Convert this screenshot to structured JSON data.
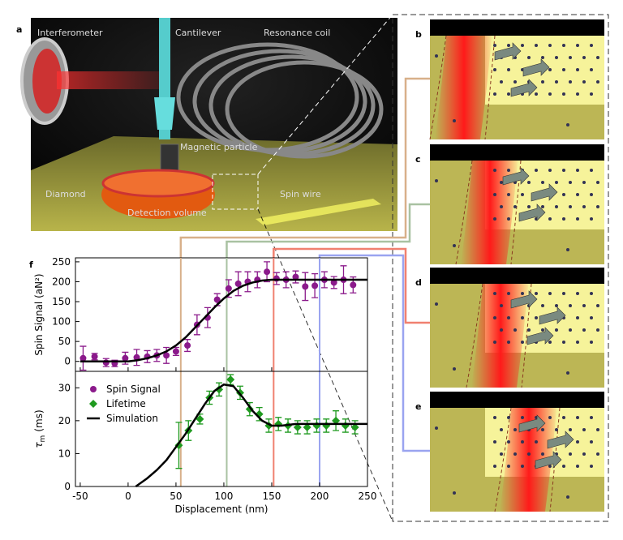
{
  "panel_labels": [
    "a",
    "b",
    "c",
    "d",
    "e",
    "f"
  ],
  "image_labels": [
    "Interferometer",
    "Cantilever",
    "Resonance coil",
    "Magnetic particle",
    "Diamond",
    "Spin wire",
    "Detection volume"
  ],
  "chart_data": [
    {
      "type": "scatter",
      "ylabel": "Spin Signal (aN²)",
      "xlim": [
        -55,
        250
      ],
      "xticks": [
        -50,
        0,
        50,
        100,
        150,
        200,
        250
      ],
      "ylim": [
        -25,
        260
      ],
      "yticks": [
        0,
        50,
        100,
        150,
        200,
        250
      ],
      "reference_lines": [
        {
          "x": 55,
          "color": "#d8b08a"
        },
        {
          "x": 103,
          "color": "#a9c2a2"
        },
        {
          "x": 152,
          "color": "#f08070"
        },
        {
          "x": 200,
          "color": "#9aa4f0"
        }
      ],
      "series": [
        {
          "name": "Spin Signal",
          "color": "#8b1a8b",
          "marker": "circle",
          "x": [
            -47,
            -35,
            -23,
            -14,
            -3,
            9,
            20,
            30,
            40,
            50,
            62,
            72,
            83,
            93,
            105,
            115,
            125,
            135,
            145,
            155,
            165,
            175,
            185,
            195,
            205,
            215,
            225,
            235
          ],
          "values": [
            8,
            12,
            -3,
            -5,
            8,
            10,
            12,
            15,
            15,
            25,
            40,
            92,
            110,
            155,
            183,
            195,
            200,
            205,
            225,
            208,
            205,
            212,
            188,
            190,
            205,
            198,
            205,
            192
          ],
          "errors": [
            30,
            8,
            10,
            8,
            15,
            20,
            15,
            15,
            20,
            10,
            15,
            25,
            25,
            15,
            22,
            30,
            25,
            20,
            25,
            15,
            20,
            15,
            35,
            30,
            20,
            15,
            35,
            20
          ]
        },
        {
          "color": "#000000",
          "marker": "line",
          "x": [
            -50,
            -25,
            0,
            10,
            20,
            30,
            40,
            50,
            60,
            70,
            80,
            90,
            100,
            110,
            120,
            130,
            140,
            150,
            175,
            200,
            250
          ],
          "values": [
            0,
            0,
            0,
            3,
            8,
            15,
            25,
            40,
            60,
            85,
            110,
            135,
            158,
            177,
            190,
            198,
            203,
            205,
            205,
            205,
            205
          ]
        }
      ]
    },
    {
      "type": "scatter",
      "ylabel": {
        "symbol": "τ",
        "subscript": "m",
        "unit": "(ms)"
      },
      "xlabel": "Displacement (nm)",
      "xlim": [
        -55,
        250
      ],
      "xticks": [
        -50,
        0,
        50,
        100,
        150,
        200,
        250
      ],
      "ylim": [
        0,
        35
      ],
      "yticks": [
        0,
        10,
        20,
        30
      ],
      "legend": "upper left",
      "series": [
        {
          "name": "Lifetime",
          "color": "#1f9a1f",
          "marker": "diamond",
          "x": [
            53,
            63,
            75,
            85,
            95,
            107,
            117,
            127,
            137,
            147,
            157,
            167,
            177,
            187,
            197,
            207,
            217,
            227,
            237
          ],
          "values": [
            12.5,
            17,
            20.5,
            27,
            29.5,
            32.5,
            28.5,
            23.5,
            22,
            18.5,
            19,
            18.5,
            18,
            18,
            18.5,
            18.5,
            20,
            18.5,
            18
          ],
          "errors": [
            7,
            3,
            1.5,
            2,
            2,
            1.5,
            2,
            2,
            2,
            2,
            2,
            2,
            2,
            2,
            2,
            2,
            3,
            2,
            2
          ]
        },
        {
          "name": "Simulation",
          "color": "#000000",
          "marker": "line",
          "x": [
            8,
            20,
            30,
            40,
            50,
            60,
            70,
            80,
            90,
            100,
            110,
            120,
            130,
            140,
            150,
            160,
            175,
            200,
            250
          ],
          "values": [
            0,
            2.5,
            5,
            8,
            12,
            16,
            20.5,
            25,
            29,
            31,
            30.5,
            27,
            23,
            20,
            18.5,
            18.5,
            19,
            19,
            19
          ]
        }
      ]
    }
  ]
}
